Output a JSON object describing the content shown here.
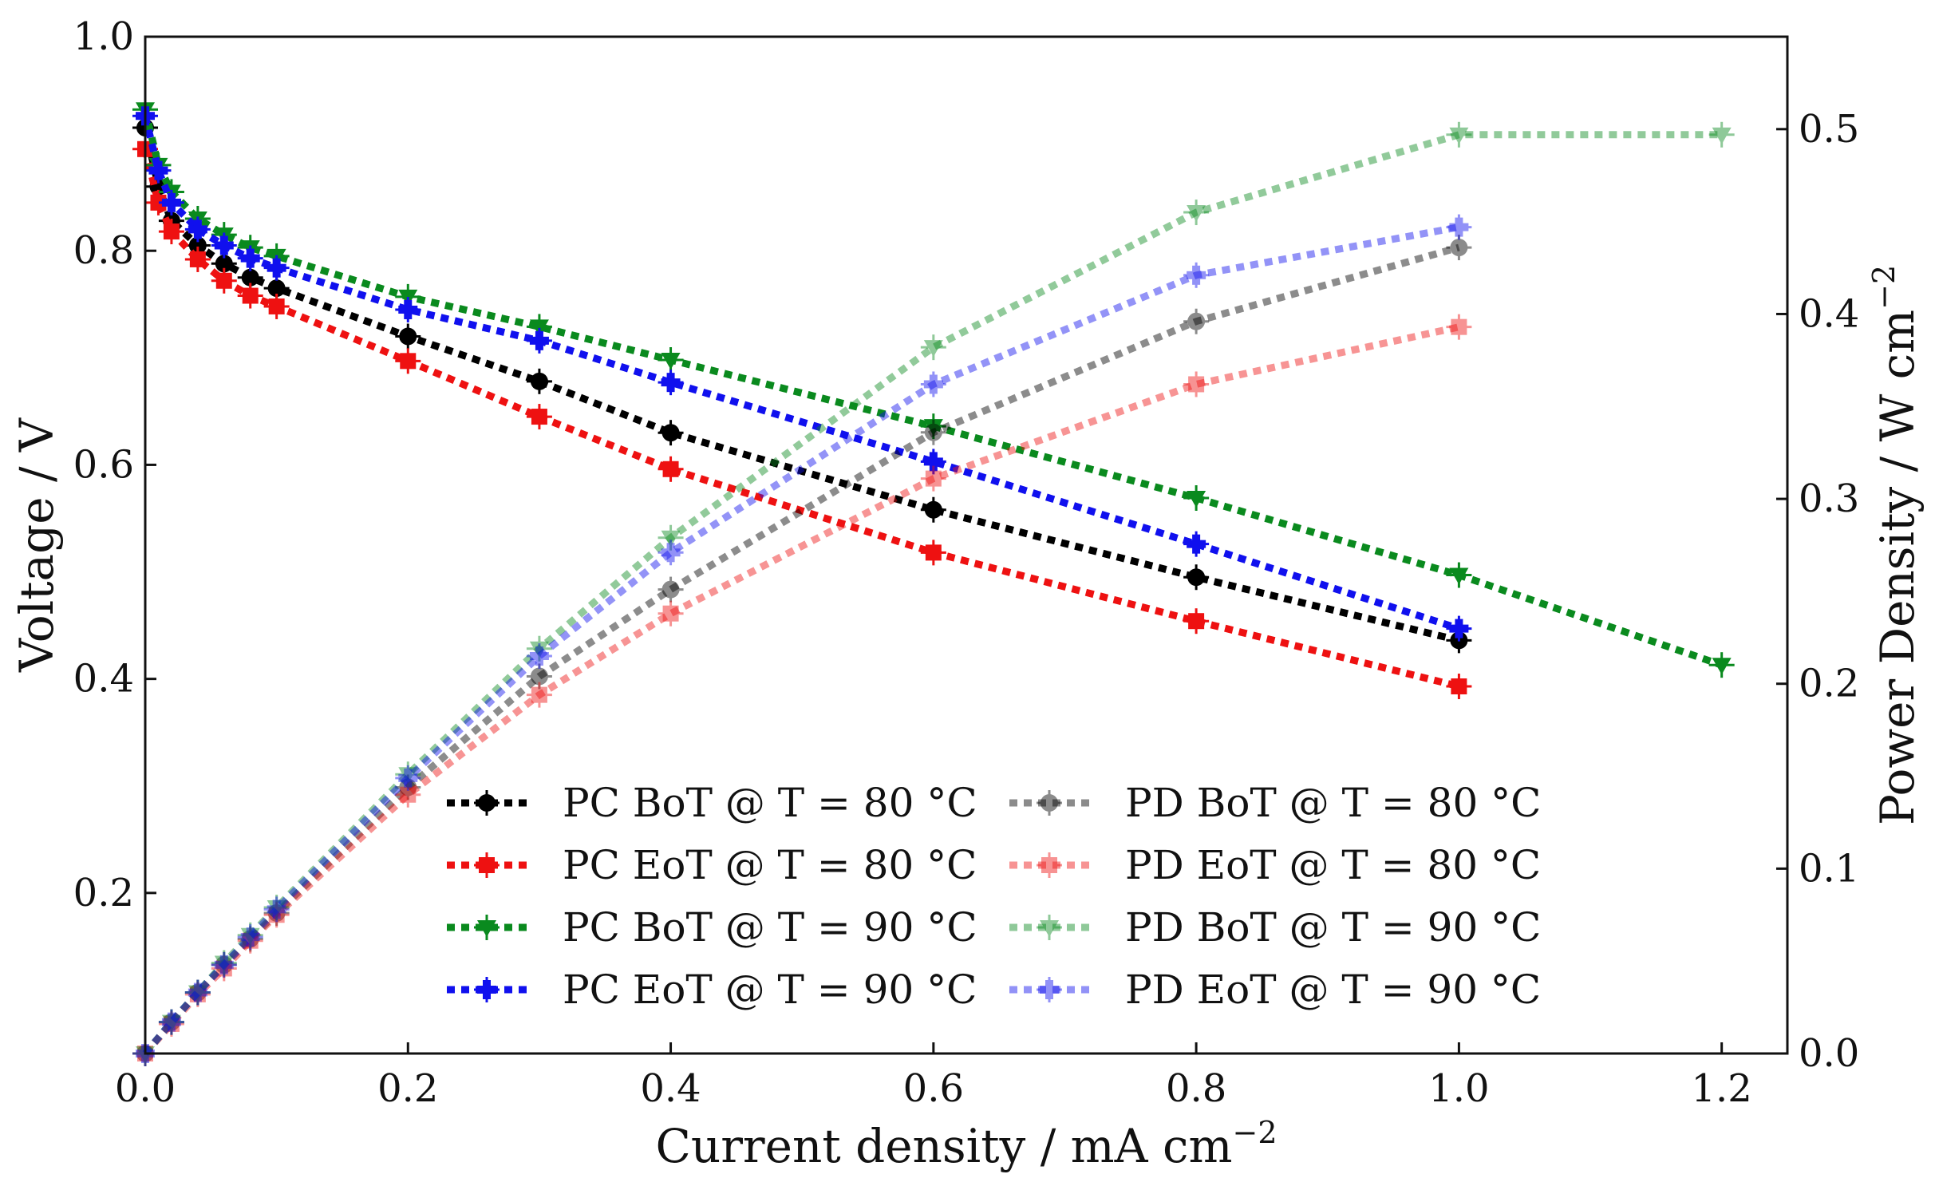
{
  "chart_data": {
    "type": "line",
    "xlabel": "Current density / mA cm",
    "xlabel_sup": "−2",
    "ylabel_left": "Voltage / V",
    "ylabel_right": "Power Density / W cm",
    "ylabel_right_sup": "−2",
    "xlim": [
      0.0,
      1.25
    ],
    "ylim_left": [
      0.05,
      1.0
    ],
    "ylim_right": [
      0.0,
      0.55
    ],
    "x_ticks": [
      0.0,
      0.2,
      0.4,
      0.6,
      0.8,
      1.0,
      1.2
    ],
    "x_tick_labels": [
      "0.0",
      "0.2",
      "0.4",
      "0.6",
      "0.8",
      "1.0",
      "1.2"
    ],
    "y_left_ticks": [
      0.2,
      0.4,
      0.6,
      0.8,
      1.0
    ],
    "y_left_tick_labels": [
      "0.2",
      "0.4",
      "0.6",
      "0.8",
      "1.0"
    ],
    "y_right_ticks": [
      0.0,
      0.1,
      0.2,
      0.3,
      0.4,
      0.5
    ],
    "y_right_tick_labels": [
      "0.0",
      "0.1",
      "0.2",
      "0.3",
      "0.4",
      "0.5"
    ],
    "grid": false,
    "legend_position": "bottom-center",
    "series": [
      {
        "name": "PC BoT  @ T = 80 °C",
        "axis": "left",
        "color": "#000000",
        "marker": "circle",
        "alpha": 1.0,
        "x": [
          0.0,
          0.01,
          0.02,
          0.04,
          0.06,
          0.08,
          0.1,
          0.2,
          0.3,
          0.4,
          0.6,
          0.8,
          1.0
        ],
        "y": [
          0.915,
          0.86,
          0.828,
          0.805,
          0.788,
          0.775,
          0.765,
          0.72,
          0.678,
          0.63,
          0.558,
          0.495,
          0.436
        ]
      },
      {
        "name": "PC EoT  @ T = 80 °C",
        "axis": "left",
        "color": "#ee1111",
        "marker": "square",
        "alpha": 1.0,
        "x": [
          0.0,
          0.01,
          0.02,
          0.04,
          0.06,
          0.08,
          0.1,
          0.2,
          0.3,
          0.4,
          0.6,
          0.8,
          1.0
        ],
        "y": [
          0.895,
          0.845,
          0.818,
          0.792,
          0.772,
          0.758,
          0.748,
          0.697,
          0.645,
          0.596,
          0.518,
          0.454,
          0.393
        ]
      },
      {
        "name": "PC BoT  @ T = 90 °C",
        "axis": "left",
        "color": "#0a8a1e",
        "marker": "triangle-down",
        "alpha": 1.0,
        "x": [
          0.0,
          0.01,
          0.02,
          0.04,
          0.06,
          0.08,
          0.1,
          0.2,
          0.3,
          0.4,
          0.6,
          0.8,
          1.0,
          1.2
        ],
        "y": [
          0.932,
          0.88,
          0.855,
          0.83,
          0.815,
          0.803,
          0.795,
          0.757,
          0.729,
          0.698,
          0.636,
          0.569,
          0.497,
          0.413
        ]
      },
      {
        "name": "PC EoT  @ T = 90 °C",
        "axis": "left",
        "color": "#1010ee",
        "marker": "plus",
        "alpha": 1.0,
        "x": [
          0.0,
          0.01,
          0.02,
          0.04,
          0.06,
          0.08,
          0.1,
          0.2,
          0.3,
          0.4,
          0.6,
          0.8,
          1.0
        ],
        "y": [
          0.926,
          0.875,
          0.845,
          0.82,
          0.805,
          0.793,
          0.784,
          0.745,
          0.716,
          0.677,
          0.603,
          0.526,
          0.447
        ]
      },
      {
        "name": "PD BoT  @ T = 80 °C",
        "axis": "right",
        "color": "#000000",
        "marker": "circle",
        "alpha": 0.45,
        "x": [
          0.0,
          0.02,
          0.04,
          0.06,
          0.08,
          0.1,
          0.2,
          0.3,
          0.4,
          0.6,
          0.8,
          1.0
        ],
        "y": [
          0.0,
          0.017,
          0.033,
          0.048,
          0.062,
          0.076,
          0.144,
          0.204,
          0.251,
          0.336,
          0.396,
          0.436
        ]
      },
      {
        "name": "PD EoT  @ T = 80 °C",
        "axis": "right",
        "color": "#ee1111",
        "marker": "square",
        "alpha": 0.45,
        "x": [
          0.0,
          0.02,
          0.04,
          0.06,
          0.08,
          0.1,
          0.2,
          0.3,
          0.4,
          0.6,
          0.8,
          1.0
        ],
        "y": [
          0.0,
          0.016,
          0.032,
          0.046,
          0.061,
          0.075,
          0.14,
          0.194,
          0.238,
          0.311,
          0.362,
          0.393
        ]
      },
      {
        "name": "PD BoT  @ T = 90 °C",
        "axis": "right",
        "color": "#0a8a1e",
        "marker": "triangle-down",
        "alpha": 0.45,
        "x": [
          0.0,
          0.02,
          0.04,
          0.06,
          0.08,
          0.1,
          0.2,
          0.3,
          0.4,
          0.6,
          0.8,
          1.0,
          1.2
        ],
        "y": [
          0.0,
          0.017,
          0.033,
          0.049,
          0.064,
          0.079,
          0.151,
          0.219,
          0.279,
          0.382,
          0.455,
          0.497,
          0.497
        ]
      },
      {
        "name": "PD EoT  @ T = 90 °C",
        "axis": "right",
        "color": "#1010ee",
        "marker": "plus",
        "alpha": 0.45,
        "x": [
          0.0,
          0.02,
          0.04,
          0.06,
          0.08,
          0.1,
          0.2,
          0.3,
          0.4,
          0.6,
          0.8,
          1.0
        ],
        "y": [
          0.0,
          0.017,
          0.033,
          0.048,
          0.063,
          0.078,
          0.149,
          0.215,
          0.271,
          0.362,
          0.421,
          0.447
        ]
      }
    ]
  }
}
